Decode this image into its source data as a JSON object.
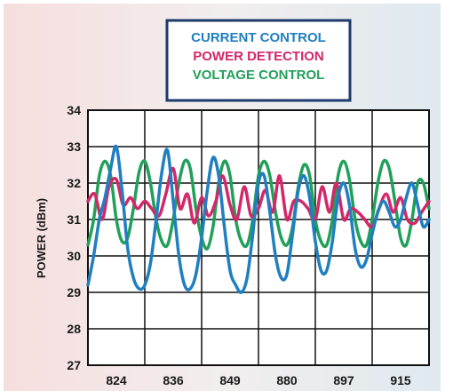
{
  "chart_data": {
    "type": "line",
    "ylabel": "POWER (dBm)",
    "ylim": [
      27,
      34
    ],
    "yticks": [
      27,
      28,
      29,
      30,
      31,
      32,
      33,
      34
    ],
    "xlabels": [
      "824",
      "836",
      "849",
      "880",
      "897",
      "915"
    ],
    "xlim": [
      0,
      6
    ],
    "grid": true,
    "legend_position": "top-center",
    "series": [
      {
        "name": "CURRENT CONTROL",
        "color": "#1f7fc0",
        "x": [
          0.0,
          0.1,
          0.2,
          0.3,
          0.4,
          0.5,
          0.6,
          0.7,
          0.8,
          0.9,
          1.0,
          1.1,
          1.2,
          1.3,
          1.4,
          1.5,
          1.6,
          1.7,
          1.8,
          1.9,
          2.0,
          2.1,
          2.2,
          2.3,
          2.4,
          2.5,
          2.6,
          2.7,
          2.8,
          2.9,
          3.0,
          3.1,
          3.2,
          3.3,
          3.4,
          3.5,
          3.6,
          3.7,
          3.8,
          3.9,
          4.0,
          4.1,
          4.2,
          4.3,
          4.4,
          4.5,
          4.6,
          4.7,
          4.8,
          4.9,
          5.0,
          5.1,
          5.2,
          5.3,
          5.4,
          5.5,
          5.6,
          5.7,
          5.8,
          5.9,
          6.0
        ],
        "y": [
          29.2,
          30.0,
          31.0,
          31.6,
          32.4,
          33.0,
          31.8,
          30.2,
          29.4,
          29.1,
          29.2,
          29.8,
          31.0,
          32.3,
          32.9,
          31.5,
          30.0,
          29.2,
          29.1,
          29.5,
          30.5,
          31.8,
          32.7,
          32.2,
          30.8,
          29.6,
          29.2,
          29.0,
          29.4,
          30.6,
          32.0,
          32.2,
          31.2,
          30.0,
          29.4,
          29.5,
          30.6,
          31.8,
          32.2,
          31.6,
          30.4,
          29.6,
          29.6,
          30.4,
          31.6,
          32.0,
          31.4,
          30.2,
          29.7,
          29.9,
          30.6,
          31.2,
          31.5,
          31.2,
          30.8,
          31.0,
          31.6,
          32.0,
          31.4,
          30.8,
          31.0
        ]
      },
      {
        "name": "POWER DETECTION",
        "color": "#d2286a",
        "x": [
          0.0,
          0.12,
          0.25,
          0.37,
          0.5,
          0.62,
          0.75,
          0.87,
          1.0,
          1.12,
          1.25,
          1.37,
          1.5,
          1.62,
          1.75,
          1.87,
          2.0,
          2.12,
          2.25,
          2.37,
          2.5,
          2.62,
          2.75,
          2.87,
          3.0,
          3.12,
          3.25,
          3.37,
          3.5,
          3.62,
          3.75,
          3.87,
          4.0,
          4.12,
          4.25,
          4.37,
          4.5,
          4.62,
          4.75,
          4.87,
          5.0,
          5.12,
          5.25,
          5.37,
          5.5,
          5.62,
          5.75,
          5.87,
          6.0
        ],
        "y": [
          31.5,
          31.7,
          31.0,
          31.9,
          32.1,
          31.4,
          31.6,
          31.3,
          31.5,
          31.3,
          31.1,
          31.7,
          32.4,
          31.3,
          31.7,
          30.9,
          31.6,
          31.1,
          31.5,
          32.2,
          31.4,
          31.0,
          31.9,
          31.1,
          31.3,
          31.8,
          31.2,
          32.2,
          31.0,
          31.5,
          31.5,
          31.3,
          31.0,
          31.9,
          31.2,
          32.0,
          31.0,
          31.3,
          31.2,
          31.0,
          30.8,
          31.3,
          31.7,
          31.2,
          31.6,
          31.0,
          30.9,
          31.2,
          31.5
        ]
      },
      {
        "name": "VOLTAGE CONTROL",
        "color": "#21a05a",
        "x": [
          0.0,
          0.1,
          0.2,
          0.3,
          0.4,
          0.5,
          0.6,
          0.7,
          0.8,
          0.9,
          1.0,
          1.1,
          1.2,
          1.3,
          1.4,
          1.5,
          1.6,
          1.7,
          1.8,
          1.9,
          2.0,
          2.1,
          2.2,
          2.3,
          2.4,
          2.5,
          2.6,
          2.7,
          2.8,
          2.9,
          3.0,
          3.1,
          3.2,
          3.3,
          3.4,
          3.5,
          3.6,
          3.7,
          3.8,
          3.9,
          4.0,
          4.1,
          4.2,
          4.3,
          4.4,
          4.5,
          4.6,
          4.7,
          4.8,
          4.9,
          5.0,
          5.1,
          5.2,
          5.3,
          5.4,
          5.5,
          5.6,
          5.7,
          5.8,
          5.9,
          6.0
        ],
        "y": [
          30.3,
          31.0,
          32.2,
          32.6,
          32.2,
          31.0,
          30.4,
          30.5,
          31.3,
          32.3,
          32.6,
          32.0,
          31.0,
          30.4,
          30.3,
          31.0,
          32.0,
          32.6,
          32.4,
          31.3,
          30.5,
          30.2,
          30.8,
          32.0,
          32.6,
          32.2,
          31.0,
          30.4,
          30.3,
          31.0,
          32.2,
          32.6,
          32.2,
          31.2,
          30.5,
          30.3,
          30.8,
          31.9,
          32.5,
          32.2,
          31.0,
          30.4,
          30.3,
          31.0,
          32.2,
          32.6,
          32.1,
          31.0,
          30.4,
          30.3,
          31.0,
          32.0,
          32.6,
          32.4,
          31.5,
          30.5,
          30.3,
          31.0,
          32.0,
          32.0,
          31.3
        ]
      }
    ]
  }
}
